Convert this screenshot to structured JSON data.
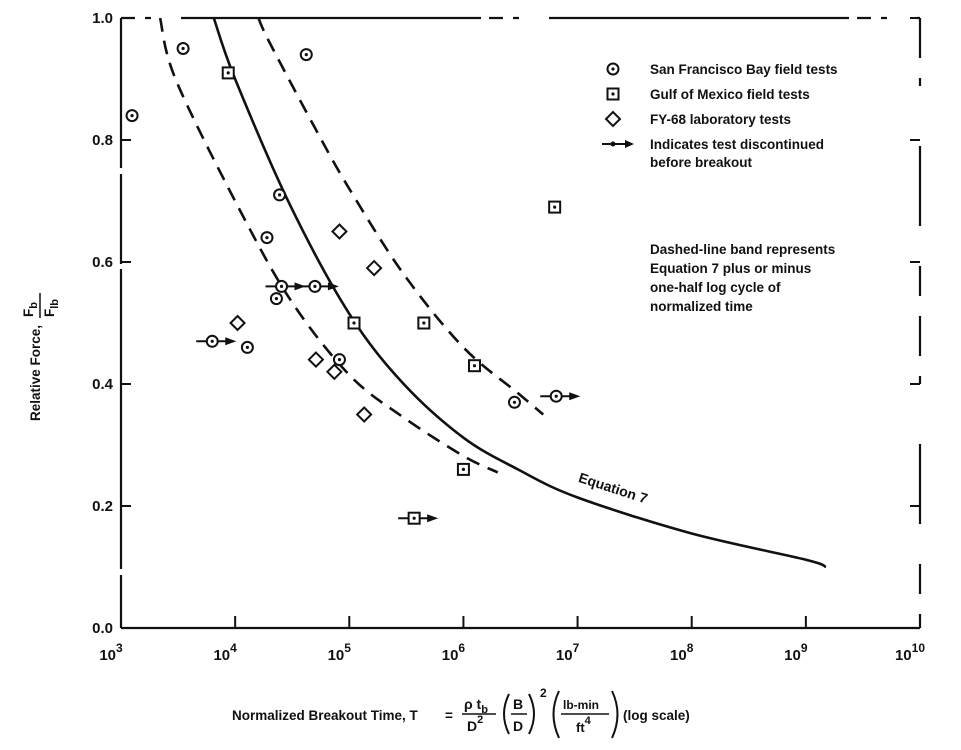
{
  "chart_data": {
    "type": "scatter",
    "x_scale": "log",
    "xlim": [
      1000,
      10000000000
    ],
    "ylim": [
      0.0,
      1.0
    ],
    "x_ticks": [
      1000,
      10000,
      100000,
      1000000,
      10000000,
      100000000,
      1000000000,
      10000000000
    ],
    "x_tick_labels": [
      {
        "base": "10",
        "exp": "3"
      },
      {
        "base": "10",
        "exp": "4"
      },
      {
        "base": "10",
        "exp": "5"
      },
      {
        "base": "10",
        "exp": "6"
      },
      {
        "base": "10",
        "exp": "7"
      },
      {
        "base": "10",
        "exp": "8"
      },
      {
        "base": "10",
        "exp": "9"
      },
      {
        "base": "10",
        "exp": "10"
      }
    ],
    "y_ticks": [
      0.0,
      0.2,
      0.4,
      0.6,
      0.8,
      1.0
    ],
    "y_tick_labels": [
      "0.0",
      "0.2",
      "0.4",
      "0.6",
      "0.8",
      "1.0"
    ],
    "xlabel": {
      "text": "Normalized Breakout Time, T",
      "equals": "=",
      "formula": {
        "num_1": "ρ t",
        "num_1_sub": "b",
        "den_1": "D",
        "den_1_sup": "2",
        "frac2_num": "B",
        "frac2_den": "D",
        "frac2_sup": "2",
        "frac3_num": "lb-min",
        "frac3_den": "ft",
        "frac3_den_sup": "4"
      },
      "suffix": "(log scale)"
    },
    "ylabel": {
      "text": "Relative Force,",
      "frac_num": "F",
      "frac_num_sub": "b",
      "frac_den": "F",
      "frac_den_sub": "lb"
    },
    "series": [
      {
        "name": "San Francisco Bay field tests",
        "marker": "circle-dot",
        "points": [
          {
            "x": 1250,
            "y": 0.84
          },
          {
            "x": 3500,
            "y": 0.95
          },
          {
            "x": 6300,
            "y": 0.47,
            "discontinued": true
          },
          {
            "x": 12800,
            "y": 0.46
          },
          {
            "x": 19000,
            "y": 0.64
          },
          {
            "x": 23000,
            "y": 0.54
          },
          {
            "x": 24500,
            "y": 0.71
          },
          {
            "x": 25500,
            "y": 0.56,
            "discontinued": true
          },
          {
            "x": 42000,
            "y": 0.94
          },
          {
            "x": 50000,
            "y": 0.56,
            "discontinued": true
          },
          {
            "x": 82000,
            "y": 0.44
          },
          {
            "x": 2800000,
            "y": 0.37
          },
          {
            "x": 6500000,
            "y": 0.38,
            "discontinued": true
          }
        ]
      },
      {
        "name": "Gulf of Mexico field tests",
        "marker": "square-dot",
        "points": [
          {
            "x": 8700,
            "y": 0.91
          },
          {
            "x": 110000,
            "y": 0.5
          },
          {
            "x": 370000,
            "y": 0.18,
            "discontinued": true
          },
          {
            "x": 450000,
            "y": 0.5
          },
          {
            "x": 1000000,
            "y": 0.26
          },
          {
            "x": 1250000,
            "y": 0.43
          },
          {
            "x": 6300000,
            "y": 0.69
          }
        ]
      },
      {
        "name": "FY-68 laboratory tests",
        "marker": "diamond",
        "points": [
          {
            "x": 10500,
            "y": 0.5
          },
          {
            "x": 51000,
            "y": 0.44
          },
          {
            "x": 74000,
            "y": 0.42
          },
          {
            "x": 82000,
            "y": 0.65
          },
          {
            "x": 135000,
            "y": 0.35
          },
          {
            "x": 165000,
            "y": 0.59
          }
        ]
      }
    ],
    "curves": [
      {
        "name": "Equation 7",
        "style": "solid",
        "points": [
          [
            6500,
            1.0
          ],
          [
            10000,
            0.9
          ],
          [
            30000,
            0.695
          ],
          [
            100000,
            0.515
          ],
          [
            300000,
            0.4
          ],
          [
            1000000,
            0.312
          ],
          [
            3000000,
            0.26
          ],
          [
            10000000,
            0.214
          ],
          [
            100000000,
            0.155
          ],
          [
            1000000000,
            0.112
          ],
          [
            1500000000,
            0.1
          ]
        ]
      },
      {
        "name": "upper band",
        "style": "dashed",
        "points": [
          [
            16000,
            1.0
          ],
          [
            20000,
            0.96
          ],
          [
            50000,
            0.82
          ],
          [
            100000,
            0.72
          ],
          [
            300000,
            0.58
          ],
          [
            1000000,
            0.46
          ],
          [
            3000000,
            0.385
          ],
          [
            5000000,
            0.35
          ]
        ]
      },
      {
        "name": "lower band",
        "style": "dashed",
        "points": [
          [
            2200,
            1.0
          ],
          [
            3000,
            0.9
          ],
          [
            10000,
            0.7
          ],
          [
            30000,
            0.54
          ],
          [
            100000,
            0.415
          ],
          [
            300000,
            0.345
          ],
          [
            1000000,
            0.282
          ],
          [
            2000000,
            0.255
          ]
        ]
      }
    ],
    "annotations": [
      {
        "text": "Equation 7",
        "at": {
          "x": 10000000,
          "y": 0.24
        },
        "rotate_deg": 18
      }
    ],
    "legend": {
      "placement": "top-right",
      "entries": [
        {
          "marker": "circle-dot",
          "label": "San Francisco Bay field tests"
        },
        {
          "marker": "square-dot",
          "label": "Gulf of Mexico field tests"
        },
        {
          "marker": "diamond",
          "label": "FY-68 laboratory tests"
        },
        {
          "marker": "arrow",
          "label": "Indicates test discontinued",
          "label2": "before breakout"
        }
      ],
      "note": [
        "Dashed-line band represents",
        "Equation 7 plus or minus",
        "one-half log cycle of",
        "normalized time"
      ]
    }
  }
}
